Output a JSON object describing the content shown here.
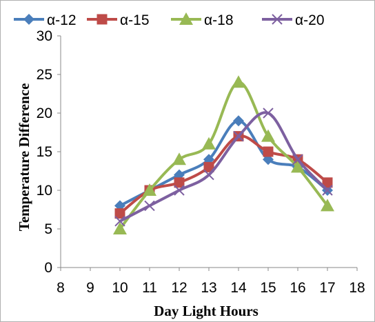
{
  "chart_data": {
    "type": "line",
    "xlabel": "Day Light Hours",
    "ylabel": "Temperature Difference",
    "xlim": [
      8,
      18
    ],
    "ylim": [
      0,
      30
    ],
    "xticks": [
      8,
      9,
      10,
      11,
      12,
      13,
      14,
      15,
      16,
      17,
      18
    ],
    "yticks": [
      0,
      5,
      10,
      15,
      20,
      25,
      30
    ],
    "grid": false,
    "legend_position": "top",
    "smooth": true,
    "x": [
      10,
      11,
      12,
      13,
      14,
      15,
      16,
      17
    ],
    "series": [
      {
        "name": "α-12",
        "color": "#4a7ebb",
        "marker": "diamond",
        "values": [
          8,
          10,
          12,
          14,
          19,
          14,
          13,
          10
        ]
      },
      {
        "name": "α-15",
        "color": "#be4b48",
        "marker": "square",
        "values": [
          7,
          10,
          11,
          13,
          17,
          15,
          14,
          11
        ]
      },
      {
        "name": "α-18",
        "color": "#98b954",
        "marker": "triangle",
        "values": [
          5,
          10,
          14,
          16,
          24,
          17,
          13,
          8
        ]
      },
      {
        "name": "α-20",
        "color": "#7d60a0",
        "marker": "x",
        "values": [
          6,
          8,
          10,
          12,
          17,
          20,
          14,
          10
        ]
      }
    ]
  }
}
